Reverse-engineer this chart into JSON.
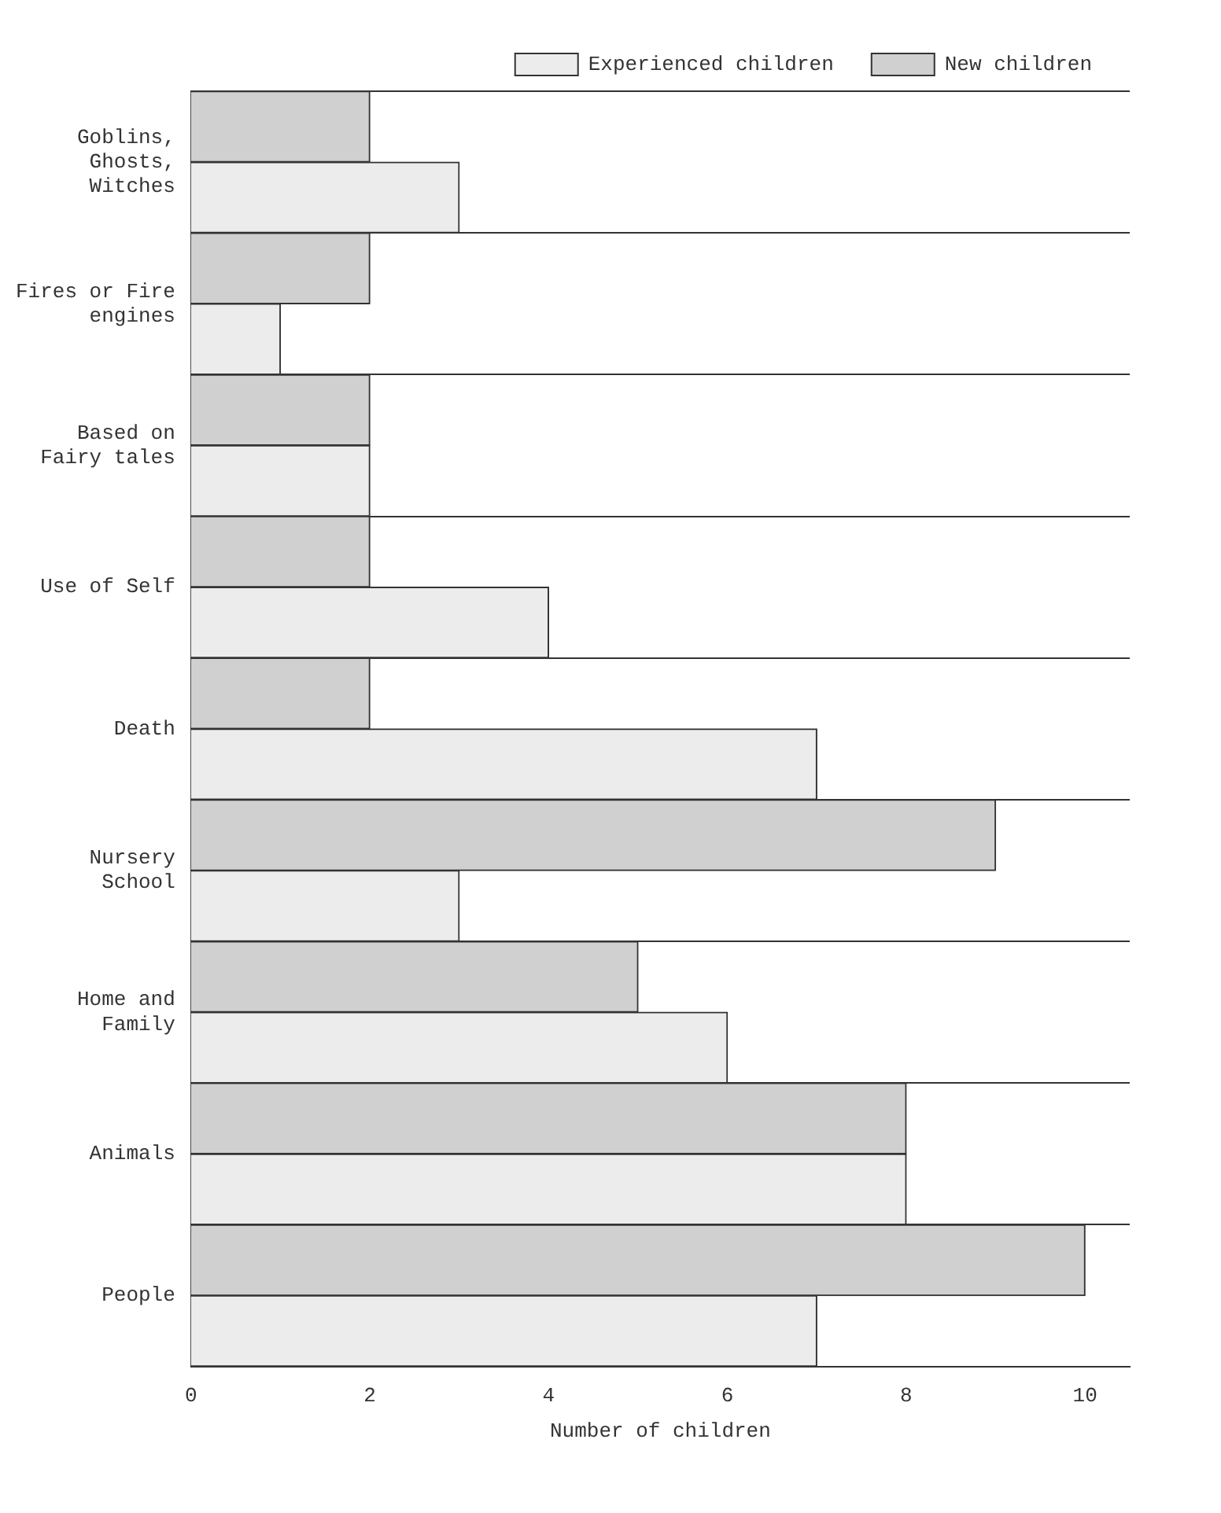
{
  "chart_data": {
    "type": "bar",
    "orientation": "horizontal",
    "xlabel": "Number of children",
    "categories": [
      "Goblins, Ghosts, Witches",
      "Fires or Fire engines",
      "Based on Fairy tales",
      "Use of Self",
      "Death",
      "Nursery School",
      "Home and Family",
      "Animals",
      "People"
    ],
    "series": [
      {
        "name": "New children",
        "color": "#d0d0d0",
        "values": [
          2,
          2,
          2,
          2,
          2,
          9,
          5,
          8,
          10
        ]
      },
      {
        "name": "Experienced children",
        "color": "#ececec",
        "values": [
          3,
          1,
          2,
          4,
          7,
          3,
          6,
          8,
          7
        ]
      }
    ],
    "xlim": [
      0,
      10.5
    ],
    "xticks": [
      0,
      2,
      4,
      6,
      8,
      10
    ],
    "grid": "y",
    "legend": "top right"
  }
}
